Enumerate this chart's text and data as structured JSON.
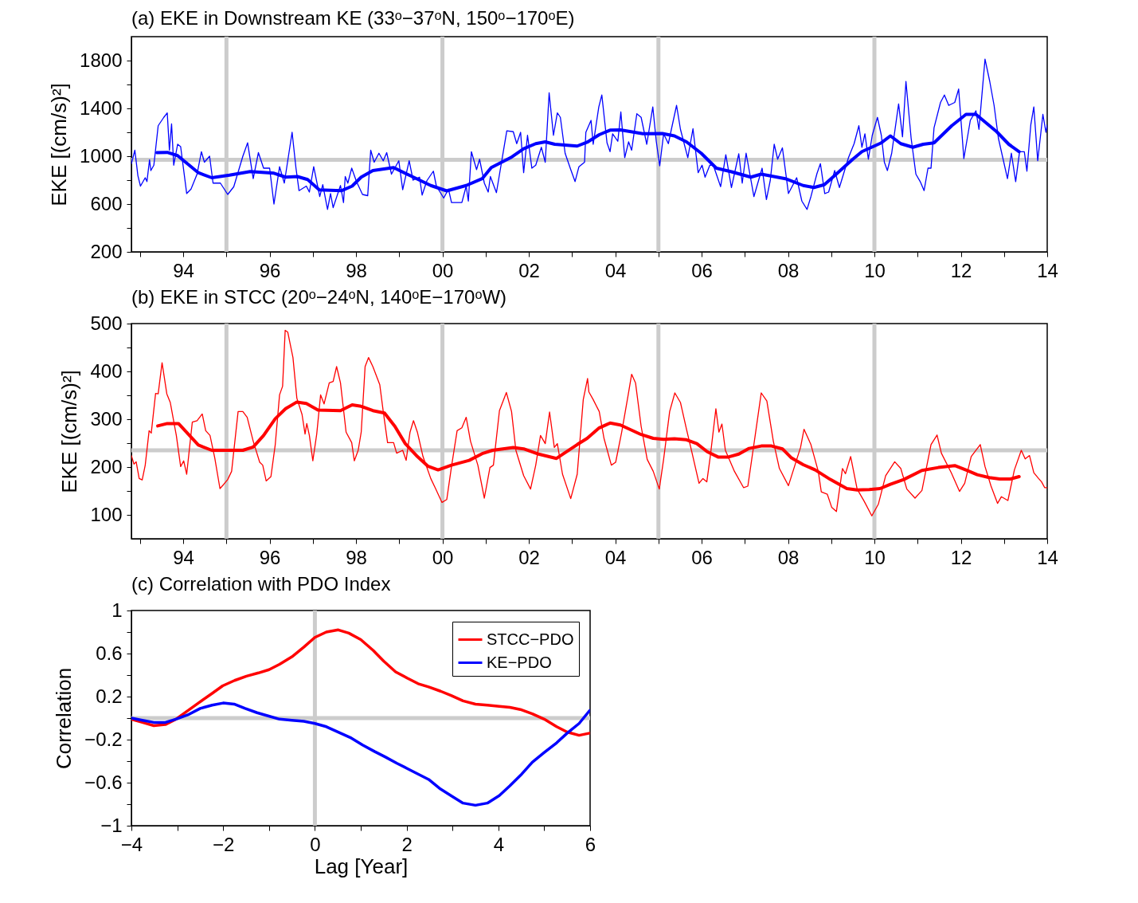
{
  "chart_data": [
    {
      "type": "line",
      "title": "(a) EKE in Downstream KE (33ᵒ−37ᵒN, 150ᵒ−170ᵒE)",
      "ylabel": "EKE [(cm/s)²]",
      "xlim": [
        1992.8,
        2014
      ],
      "ylim": [
        200,
        2000
      ],
      "xticks": [
        {
          "value": 1993,
          "label": null
        },
        {
          "value": 1994,
          "label": "94"
        },
        {
          "value": 1995,
          "label": null
        },
        {
          "value": 1996,
          "label": "96"
        },
        {
          "value": 1997,
          "label": null
        },
        {
          "value": 1998,
          "label": "98"
        },
        {
          "value": 1999,
          "label": null
        },
        {
          "value": 2000,
          "label": "00"
        },
        {
          "value": 2001,
          "label": null
        },
        {
          "value": 2002,
          "label": "02"
        },
        {
          "value": 2003,
          "label": null
        },
        {
          "value": 2004,
          "label": "04"
        },
        {
          "value": 2005,
          "label": null
        },
        {
          "value": 2006,
          "label": "06"
        },
        {
          "value": 2007,
          "label": null
        },
        {
          "value": 2008,
          "label": "08"
        },
        {
          "value": 2009,
          "label": null
        },
        {
          "value": 2010,
          "label": "10"
        },
        {
          "value": 2011,
          "label": null
        },
        {
          "value": 2012,
          "label": "12"
        },
        {
          "value": 2013,
          "label": null
        },
        {
          "value": 2014,
          "label": "14"
        }
      ],
      "yticks": [
        200,
        {
          "value": 400,
          "label": null
        },
        600,
        {
          "value": 800,
          "label": null
        },
        1000,
        {
          "value": 1200,
          "label": null
        },
        1400,
        {
          "value": 1600,
          "label": null
        },
        1800
      ],
      "ref_lines": [
        {
          "axis": "x",
          "value": 1995,
          "color": "#cccccc"
        },
        {
          "axis": "x",
          "value": 2000,
          "color": "#cccccc"
        },
        {
          "axis": "x",
          "value": 2005,
          "color": "#cccccc"
        },
        {
          "axis": "x",
          "value": 2010,
          "color": "#cccccc"
        },
        {
          "axis": "y",
          "value": 970,
          "color": "#cccccc"
        }
      ],
      "series": [
        {
          "color": "#0000ff",
          "x": [
            1992.8,
            1992.88,
            1992.95,
            1993.01,
            1993.12,
            1993.16,
            1993.22,
            1993.25,
            1993.32,
            1993.42,
            1993.55,
            1993.63,
            1993.68,
            1993.73,
            1993.78,
            1993.87,
            1993.94,
            1994.08,
            1994.18,
            1994.32,
            1994.42,
            1994.49,
            1994.61,
            1994.69,
            1994.86,
            1995.03,
            1995.17,
            1995.38,
            1995.49,
            1995.62,
            1995.74,
            1995.86,
            1996.0,
            1996.1,
            1996.23,
            1996.34,
            1996.52,
            1996.61,
            1996.68,
            1996.85,
            1996.92,
            1997.02,
            1997.16,
            1997.23,
            1997.34,
            1997.41,
            1997.47,
            1997.64,
            1997.71,
            1997.75,
            1997.81,
            1997.9,
            1998.01,
            1998.15,
            1998.27,
            1998.34,
            1998.42,
            1998.53,
            1998.63,
            1998.71,
            1998.82,
            1998.99,
            1999.08,
            1999.23,
            1999.32,
            1999.47,
            1999.53,
            1999.64,
            1999.79,
            1999.86,
            2000.03,
            2000.14,
            2000.21,
            2000.45,
            2000.55,
            2000.6,
            2000.67,
            2000.79,
            2000.86,
            2000.97,
            2001.06,
            2001.11,
            2001.25,
            2001.49,
            2001.64,
            2001.72,
            2001.81,
            2001.88,
            2001.97,
            2002.07,
            2002.16,
            2002.29,
            2002.38,
            2002.47,
            2002.57,
            2002.66,
            2002.73,
            2002.84,
            2002.97,
            2003.07,
            2003.16,
            2003.29,
            2003.32,
            2003.44,
            2003.49,
            2003.62,
            2003.69,
            2003.81,
            2003.88,
            2003.94,
            2004.06,
            2004.13,
            2004.22,
            2004.31,
            2004.38,
            2004.5,
            2004.6,
            2004.73,
            2004.87,
            2004.95,
            2005.03,
            2005.12,
            2005.23,
            2005.3,
            2005.42,
            2005.51,
            2005.68,
            2005.8,
            2005.92,
            2006.01,
            2006.08,
            2006.19,
            2006.27,
            2006.44,
            2006.56,
            2006.69,
            2006.86,
            2006.94,
            2007.03,
            2007.21,
            2007.4,
            2007.5,
            2007.59,
            2007.68,
            2007.76,
            2007.87,
            2008.01,
            2008.2,
            2008.32,
            2008.44,
            2008.53,
            2008.67,
            2008.75,
            2008.85,
            2008.94,
            2009.08,
            2009.19,
            2009.4,
            2009.53,
            2009.64,
            2009.71,
            2009.78,
            2009.86,
            2009.95,
            2010.07,
            2010.16,
            2010.23,
            2010.3,
            2010.4,
            2010.56,
            2010.65,
            2010.73,
            2010.85,
            2010.96,
            2011.06,
            2011.15,
            2011.24,
            2011.31,
            2011.38,
            2011.53,
            2011.62,
            2011.72,
            2011.86,
            2011.95,
            2012.07,
            2012.22,
            2012.35,
            2012.42,
            2012.56,
            2012.67,
            2012.77,
            2012.87,
            2013.08,
            2013.17,
            2013.27,
            2013.36,
            2013.47,
            2013.53,
            2013.62,
            2013.69,
            2013.78,
            2013.9,
            2013.97,
            2014.0
          ],
          "values": [
            938,
            1050,
            838,
            750,
            820,
            788,
            970,
            880,
            925,
            1255,
            1325,
            1362,
            1050,
            1270,
            925,
            1100,
            1080,
            688,
            725,
            850,
            1038,
            950,
            1000,
            775,
            775,
            680,
            745,
            1000,
            1112,
            812,
            1030,
            900,
            900,
            600,
            912,
            775,
            1200,
            900,
            712,
            750,
            700,
            912,
            662,
            762,
            555,
            688,
            570,
            755,
            612,
            830,
            775,
            900,
            788,
            680,
            670,
            1050,
            950,
            1025,
            962,
            1030,
            850,
            962,
            720,
            962,
            800,
            825,
            675,
            795,
            875,
            750,
            650,
            725,
            612,
            612,
            750,
            625,
            1038,
            888,
            975,
            775,
            700,
            830,
            695,
            1212,
            1205,
            1105,
            1200,
            862,
            1175,
            900,
            925,
            1075,
            950,
            1530,
            1175,
            1362,
            1325,
            1025,
            888,
            788,
            912,
            950,
            1200,
            1300,
            1100,
            1412,
            1512,
            1112,
            1038,
            1188,
            1125,
            1370,
            988,
            1120,
            1050,
            1355,
            1325,
            1100,
            1412,
            1125,
            920,
            1188,
            1105,
            1225,
            1425,
            1225,
            988,
            1230,
            862,
            925,
            825,
            925,
            925,
            745,
            1012,
            738,
            1020,
            775,
            1025,
            662,
            900,
            638,
            800,
            1100,
            975,
            1070,
            688,
            820,
            625,
            555,
            662,
            855,
            938,
            688,
            700,
            880,
            738,
            988,
            1105,
            1255,
            1075,
            1188,
            975,
            1175,
            1325,
            1175,
            950,
            880,
            1025,
            1438,
            1162,
            1625,
            1150,
            850,
            788,
            712,
            900,
            900,
            1238,
            1450,
            1512,
            1425,
            1450,
            1562,
            980,
            1300,
            1380,
            1225,
            1812,
            1625,
            1425,
            1150,
            812,
            1025,
            788,
            1038,
            1038,
            875,
            1262,
            1412,
            962,
            1350,
            1200,
            1262
          ]
        },
        {
          "color": "#0000ff",
          "x": [
            1993.39,
            1993.63,
            1993.87,
            1994.35,
            1994.66,
            1995.07,
            1995.55,
            1996.1,
            1996.37,
            1996.64,
            1996.88,
            1997.15,
            1997.67,
            1997.91,
            1998.12,
            1998.39,
            1998.87,
            1999.25,
            1999.73,
            2000.1,
            2000.55,
            2000.92,
            2001.13,
            2001.58,
            2001.88,
            2002.16,
            2002.38,
            2002.6,
            2003.12,
            2003.35,
            2003.63,
            2003.88,
            2004.12,
            2004.64,
            2005.09,
            2005.37,
            2005.65,
            2005.99,
            2006.34,
            2006.69,
            2007.14,
            2007.38,
            2007.94,
            2008.35,
            2008.6,
            2008.84,
            2009.08,
            2009.5,
            2009.71,
            2010.16,
            2010.37,
            2010.61,
            2010.89,
            2011.13,
            2011.38,
            2011.79,
            2012.12,
            2012.35,
            2012.83,
            2013.11,
            2013.35
          ],
          "values": [
            1030,
            1032,
            1005,
            862,
            820,
            842,
            872,
            858,
            825,
            830,
            805,
            718,
            712,
            750,
            825,
            880,
            905,
            838,
            755,
            710,
            755,
            812,
            905,
            988,
            1062,
            1105,
            1120,
            1100,
            1085,
            1117,
            1180,
            1218,
            1220,
            1188,
            1190,
            1170,
            1120,
            1025,
            900,
            870,
            825,
            850,
            812,
            755,
            738,
            762,
            838,
            975,
            1038,
            1112,
            1170,
            1105,
            1075,
            1100,
            1112,
            1255,
            1350,
            1350,
            1205,
            1100,
            1038
          ]
        }
      ]
    },
    {
      "type": "line",
      "title": "(b) EKE in STCC (20ᵒ−24ᵒN, 140ᵒE−170ᵒW)",
      "ylabel": "EKE [(cm/s)²]",
      "xlim": [
        1992.8,
        2014
      ],
      "ylim": [
        50,
        500
      ],
      "xticks": [
        {
          "value": 1993,
          "label": null
        },
        {
          "value": 1994,
          "label": "94"
        },
        {
          "value": 1995,
          "label": null
        },
        {
          "value": 1996,
          "label": "96"
        },
        {
          "value": 1997,
          "label": null
        },
        {
          "value": 1998,
          "label": "98"
        },
        {
          "value": 1999,
          "label": null
        },
        {
          "value": 2000,
          "label": "00"
        },
        {
          "value": 2001,
          "label": null
        },
        {
          "value": 2002,
          "label": "02"
        },
        {
          "value": 2003,
          "label": null
        },
        {
          "value": 2004,
          "label": "04"
        },
        {
          "value": 2005,
          "label": null
        },
        {
          "value": 2006,
          "label": "06"
        },
        {
          "value": 2007,
          "label": null
        },
        {
          "value": 2008,
          "label": "08"
        },
        {
          "value": 2009,
          "label": null
        },
        {
          "value": 2010,
          "label": "10"
        },
        {
          "value": 2011,
          "label": null
        },
        {
          "value": 2012,
          "label": "12"
        },
        {
          "value": 2013,
          "label": null
        },
        {
          "value": 2014,
          "label": "14"
        }
      ],
      "yticks": [
        100,
        {
          "value": 150,
          "label": null
        },
        200,
        {
          "value": 250,
          "label": null
        },
        300,
        {
          "value": 350,
          "label": null
        },
        400,
        {
          "value": 450,
          "label": null
        },
        500
      ],
      "ref_lines": [
        {
          "axis": "x",
          "value": 1995,
          "color": "#cccccc"
        },
        {
          "axis": "x",
          "value": 2000,
          "color": "#cccccc"
        },
        {
          "axis": "x",
          "value": 2005,
          "color": "#cccccc"
        },
        {
          "axis": "x",
          "value": 2010,
          "color": "#cccccc"
        },
        {
          "axis": "y",
          "value": 235,
          "color": "#cccccc"
        }
      ],
      "series": [
        {
          "color": "#ff0000",
          "x": [
            1992.8,
            1992.86,
            1992.91,
            1992.98,
            1993.05,
            1993.12,
            1993.21,
            1993.26,
            1993.36,
            1993.42,
            1993.51,
            1993.62,
            1993.7,
            1993.84,
            1993.94,
            1994.01,
            1994.08,
            1994.21,
            1994.32,
            1994.44,
            1994.52,
            1994.62,
            1994.73,
            1994.85,
            1994.93,
            1995.03,
            1995.12,
            1995.27,
            1995.38,
            1995.48,
            1995.62,
            1995.77,
            1995.84,
            1995.92,
            1996.03,
            1996.13,
            1996.23,
            1996.3,
            1996.36,
            1996.42,
            1996.54,
            1996.63,
            1996.75,
            1996.82,
            1996.86,
            1996.92,
            1997.0,
            1997.09,
            1997.18,
            1997.26,
            1997.38,
            1997.47,
            1997.55,
            1997.64,
            1997.77,
            1997.9,
            1997.96,
            1998.05,
            1998.12,
            1998.21,
            1998.29,
            1998.39,
            1998.55,
            1998.63,
            1998.73,
            1998.87,
            1998.94,
            1999.08,
            1999.16,
            1999.25,
            1999.33,
            1999.42,
            1999.55,
            1999.73,
            1999.83,
            1999.99,
            2000.1,
            2000.21,
            2000.34,
            2000.45,
            2000.55,
            2000.65,
            2000.82,
            2000.97,
            2001.1,
            2001.18,
            2001.32,
            2001.48,
            2001.6,
            2001.7,
            2001.88,
            2002.04,
            2002.16,
            2002.27,
            2002.38,
            2002.48,
            2002.59,
            2002.66,
            2002.78,
            2002.97,
            2003.12,
            2003.26,
            2003.36,
            2003.39,
            2003.49,
            2003.63,
            2003.74,
            2003.91,
            2004.01,
            2004.15,
            2004.3,
            2004.38,
            2004.47,
            2004.6,
            2004.74,
            2004.88,
            2005.02,
            2005.12,
            2005.26,
            2005.38,
            2005.51,
            2005.65,
            2005.78,
            2005.94,
            2006.03,
            2006.12,
            2006.2,
            2006.33,
            2006.4,
            2006.47,
            2006.55,
            2006.76,
            2006.97,
            2007.07,
            2007.24,
            2007.38,
            2007.51,
            2007.66,
            2007.8,
            2008.01,
            2008.16,
            2008.29,
            2008.37,
            2008.53,
            2008.7,
            2008.77,
            2008.91,
            2009.01,
            2009.12,
            2009.26,
            2009.33,
            2009.45,
            2009.6,
            2009.76,
            2009.94,
            2010.09,
            2010.26,
            2010.47,
            2010.61,
            2010.75,
            2010.94,
            2011.1,
            2011.31,
            2011.45,
            2011.55,
            2011.78,
            2011.97,
            2012.09,
            2012.24,
            2012.45,
            2012.56,
            2012.7,
            2012.85,
            2012.94,
            2013.09,
            2013.24,
            2013.4,
            2013.49,
            2013.59,
            2013.69,
            2013.8,
            2013.87,
            2013.94,
            2014.0
          ],
          "values": [
            224,
            206,
            211,
            176,
            173,
            204,
            276,
            271,
            354,
            353,
            418,
            353,
            335,
            266,
            201,
            213,
            185,
            294,
            297,
            311,
            276,
            266,
            219,
            155,
            163,
            174,
            191,
            316,
            316,
            304,
            254,
            210,
            204,
            171,
            180,
            247,
            351,
            369,
            486,
            482,
            429,
            344,
            310,
            269,
            291,
            266,
            213,
            269,
            351,
            332,
            376,
            379,
            410,
            376,
            273,
            251,
            213,
            235,
            273,
            410,
            429,
            410,
            372,
            316,
            251,
            251,
            229,
            235,
            214,
            273,
            297,
            273,
            222,
            176,
            157,
            126,
            132,
            201,
            276,
            282,
            304,
            254,
            204,
            135,
            199,
            204,
            318,
            356,
            316,
            235,
            182,
            154,
            204,
            266,
            249,
            315,
            241,
            249,
            185,
            134,
            185,
            341,
            385,
            357,
            341,
            316,
            260,
            204,
            210,
            273,
            351,
            394,
            376,
            285,
            216,
            191,
            154,
            216,
            316,
            355,
            335,
            279,
            229,
            166,
            176,
            169,
            222,
            322,
            273,
            290,
            235,
            191,
            157,
            160,
            266,
            355,
            338,
            254,
            197,
            161,
            204,
            241,
            279,
            247,
            191,
            148,
            143,
            116,
            107,
            197,
            186,
            222,
            154,
            129,
            98,
            122,
            182,
            211,
            197,
            154,
            135,
            151,
            247,
            267,
            229,
            188,
            149,
            166,
            222,
            247,
            201,
            160,
            124,
            138,
            130,
            194,
            235,
            217,
            224,
            188,
            176,
            169,
            157,
            157
          ]
        },
        {
          "color": "#ff0000",
          "x": [
            1993.41,
            1993.63,
            1993.89,
            1994.35,
            1994.66,
            1995.38,
            1995.62,
            1995.86,
            1996.13,
            1996.37,
            1996.63,
            1996.85,
            1997.12,
            1997.64,
            1997.91,
            1998.12,
            1998.39,
            1998.66,
            1998.9,
            1999.14,
            1999.42,
            1999.66,
            1999.9,
            2000.21,
            2000.62,
            2000.92,
            2001.16,
            2001.64,
            2001.88,
            2002.19,
            2002.64,
            2003.12,
            2003.35,
            2003.63,
            2003.88,
            2004.12,
            2004.6,
            2004.88,
            2005.12,
            2005.37,
            2005.65,
            2005.89,
            2006.13,
            2006.38,
            2006.62,
            2006.86,
            2007.1,
            2007.38,
            2007.62,
            2007.87,
            2008.08,
            2008.35,
            2008.63,
            2008.98,
            2009.36,
            2009.6,
            2009.88,
            2010.13,
            2010.37,
            2010.68,
            2011.1,
            2011.48,
            2011.86,
            2012.14,
            2012.38,
            2012.66,
            2012.9,
            2013.15,
            2013.35
          ],
          "values": [
            286,
            291,
            291,
            246,
            235,
            235,
            242,
            266,
            301,
            322,
            336,
            333,
            319,
            318,
            330,
            327,
            318,
            313,
            285,
            249,
            222,
            202,
            194,
            204,
            214,
            228,
            235,
            241,
            238,
            228,
            218,
            247,
            260,
            282,
            292,
            288,
            268,
            260,
            258,
            259,
            257,
            249,
            232,
            221,
            221,
            227,
            239,
            244,
            244,
            238,
            219,
            205,
            194,
            174,
            155,
            152,
            153,
            155,
            164,
            174,
            193,
            199,
            203,
            193,
            184,
            178,
            175,
            175,
            180
          ]
        }
      ]
    },
    {
      "type": "line",
      "title": "(c) Correlation with PDO Index",
      "xlabel": "Lag [Year]",
      "ylabel": "Correlation",
      "xlim": [
        -4,
        6
      ],
      "ylim": [
        -1,
        1
      ],
      "legend": "top right",
      "xticks": [
        {
          "value": -4,
          "label": "−4"
        },
        {
          "value": -3,
          "label": null
        },
        {
          "value": -2,
          "label": "−2"
        },
        {
          "value": -1,
          "label": null
        },
        0,
        {
          "value": 1,
          "label": null
        },
        2,
        {
          "value": 3,
          "label": null
        },
        4,
        {
          "value": 5,
          "label": null
        },
        6
      ],
      "yticks": [
        {
          "value": -1,
          "label": "−1"
        },
        {
          "value": -0.8,
          "label": null
        },
        {
          "value": -0.6,
          "label": "−0.6"
        },
        {
          "value": -0.4,
          "label": null
        },
        {
          "value": -0.2,
          "label": "−0.2"
        },
        {
          "value": 0,
          "label": null
        },
        0.2,
        {
          "value": 0.4,
          "label": null
        },
        0.6,
        {
          "value": 0.8,
          "label": null
        },
        1
      ],
      "ref_lines": [
        {
          "axis": "x",
          "value": 0,
          "color": "#cccccc"
        },
        {
          "axis": "y",
          "value": 0,
          "color": "#cccccc"
        }
      ],
      "series": [
        {
          "name": "STCC−PDO",
          "color": "#ff0000",
          "x": [
            -4,
            -3.76,
            -3.51,
            -3.26,
            -3.03,
            -2.8,
            -2.54,
            -2.24,
            -2.01,
            -1.75,
            -1.49,
            -1.23,
            -1.0,
            -0.77,
            -0.5,
            -0.24,
            0,
            0.25,
            0.51,
            0.74,
            1.0,
            1.27,
            1.5,
            1.76,
            2.02,
            2.25,
            2.48,
            2.74,
            2.97,
            3.23,
            3.5,
            3.76,
            4.02,
            4.25,
            4.48,
            4.74,
            5.0,
            5.27,
            5.5,
            5.76,
            5.99
          ],
          "values": [
            -0.01,
            -0.04,
            -0.07,
            -0.06,
            -0.01,
            0.06,
            0.14,
            0.23,
            0.3,
            0.35,
            0.39,
            0.42,
            0.45,
            0.5,
            0.57,
            0.66,
            0.75,
            0.8,
            0.82,
            0.79,
            0.73,
            0.63,
            0.53,
            0.43,
            0.37,
            0.32,
            0.29,
            0.25,
            0.21,
            0.16,
            0.13,
            0.12,
            0.11,
            0.1,
            0.08,
            0.04,
            -0.01,
            -0.08,
            -0.13,
            -0.16,
            -0.14
          ]
        },
        {
          "name": "KE−PDO",
          "color": "#0000ff",
          "x": [
            -4,
            -3.76,
            -3.51,
            -3.26,
            -3.03,
            -2.77,
            -2.5,
            -2.24,
            -2.0,
            -1.76,
            -1.52,
            -1.26,
            -1.02,
            -0.77,
            -0.5,
            -0.24,
            0,
            0.25,
            0.51,
            0.77,
            1.04,
            1.3,
            1.53,
            1.79,
            2.02,
            2.25,
            2.48,
            2.74,
            3.0,
            3.23,
            3.5,
            3.76,
            4.02,
            4.25,
            4.51,
            4.74,
            5.0,
            5.27,
            5.5,
            5.76,
            5.99
          ],
          "values": [
            0,
            -0.02,
            -0.04,
            -0.04,
            -0.01,
            0.03,
            0.09,
            0.12,
            0.14,
            0.13,
            0.09,
            0.05,
            0.02,
            -0.01,
            -0.02,
            -0.03,
            -0.05,
            -0.08,
            -0.13,
            -0.18,
            -0.25,
            -0.31,
            -0.36,
            -0.42,
            -0.47,
            -0.52,
            -0.57,
            -0.66,
            -0.73,
            -0.79,
            -0.81,
            -0.79,
            -0.72,
            -0.63,
            -0.52,
            -0.41,
            -0.32,
            -0.23,
            -0.14,
            -0.05,
            0.07
          ]
        }
      ]
    }
  ]
}
